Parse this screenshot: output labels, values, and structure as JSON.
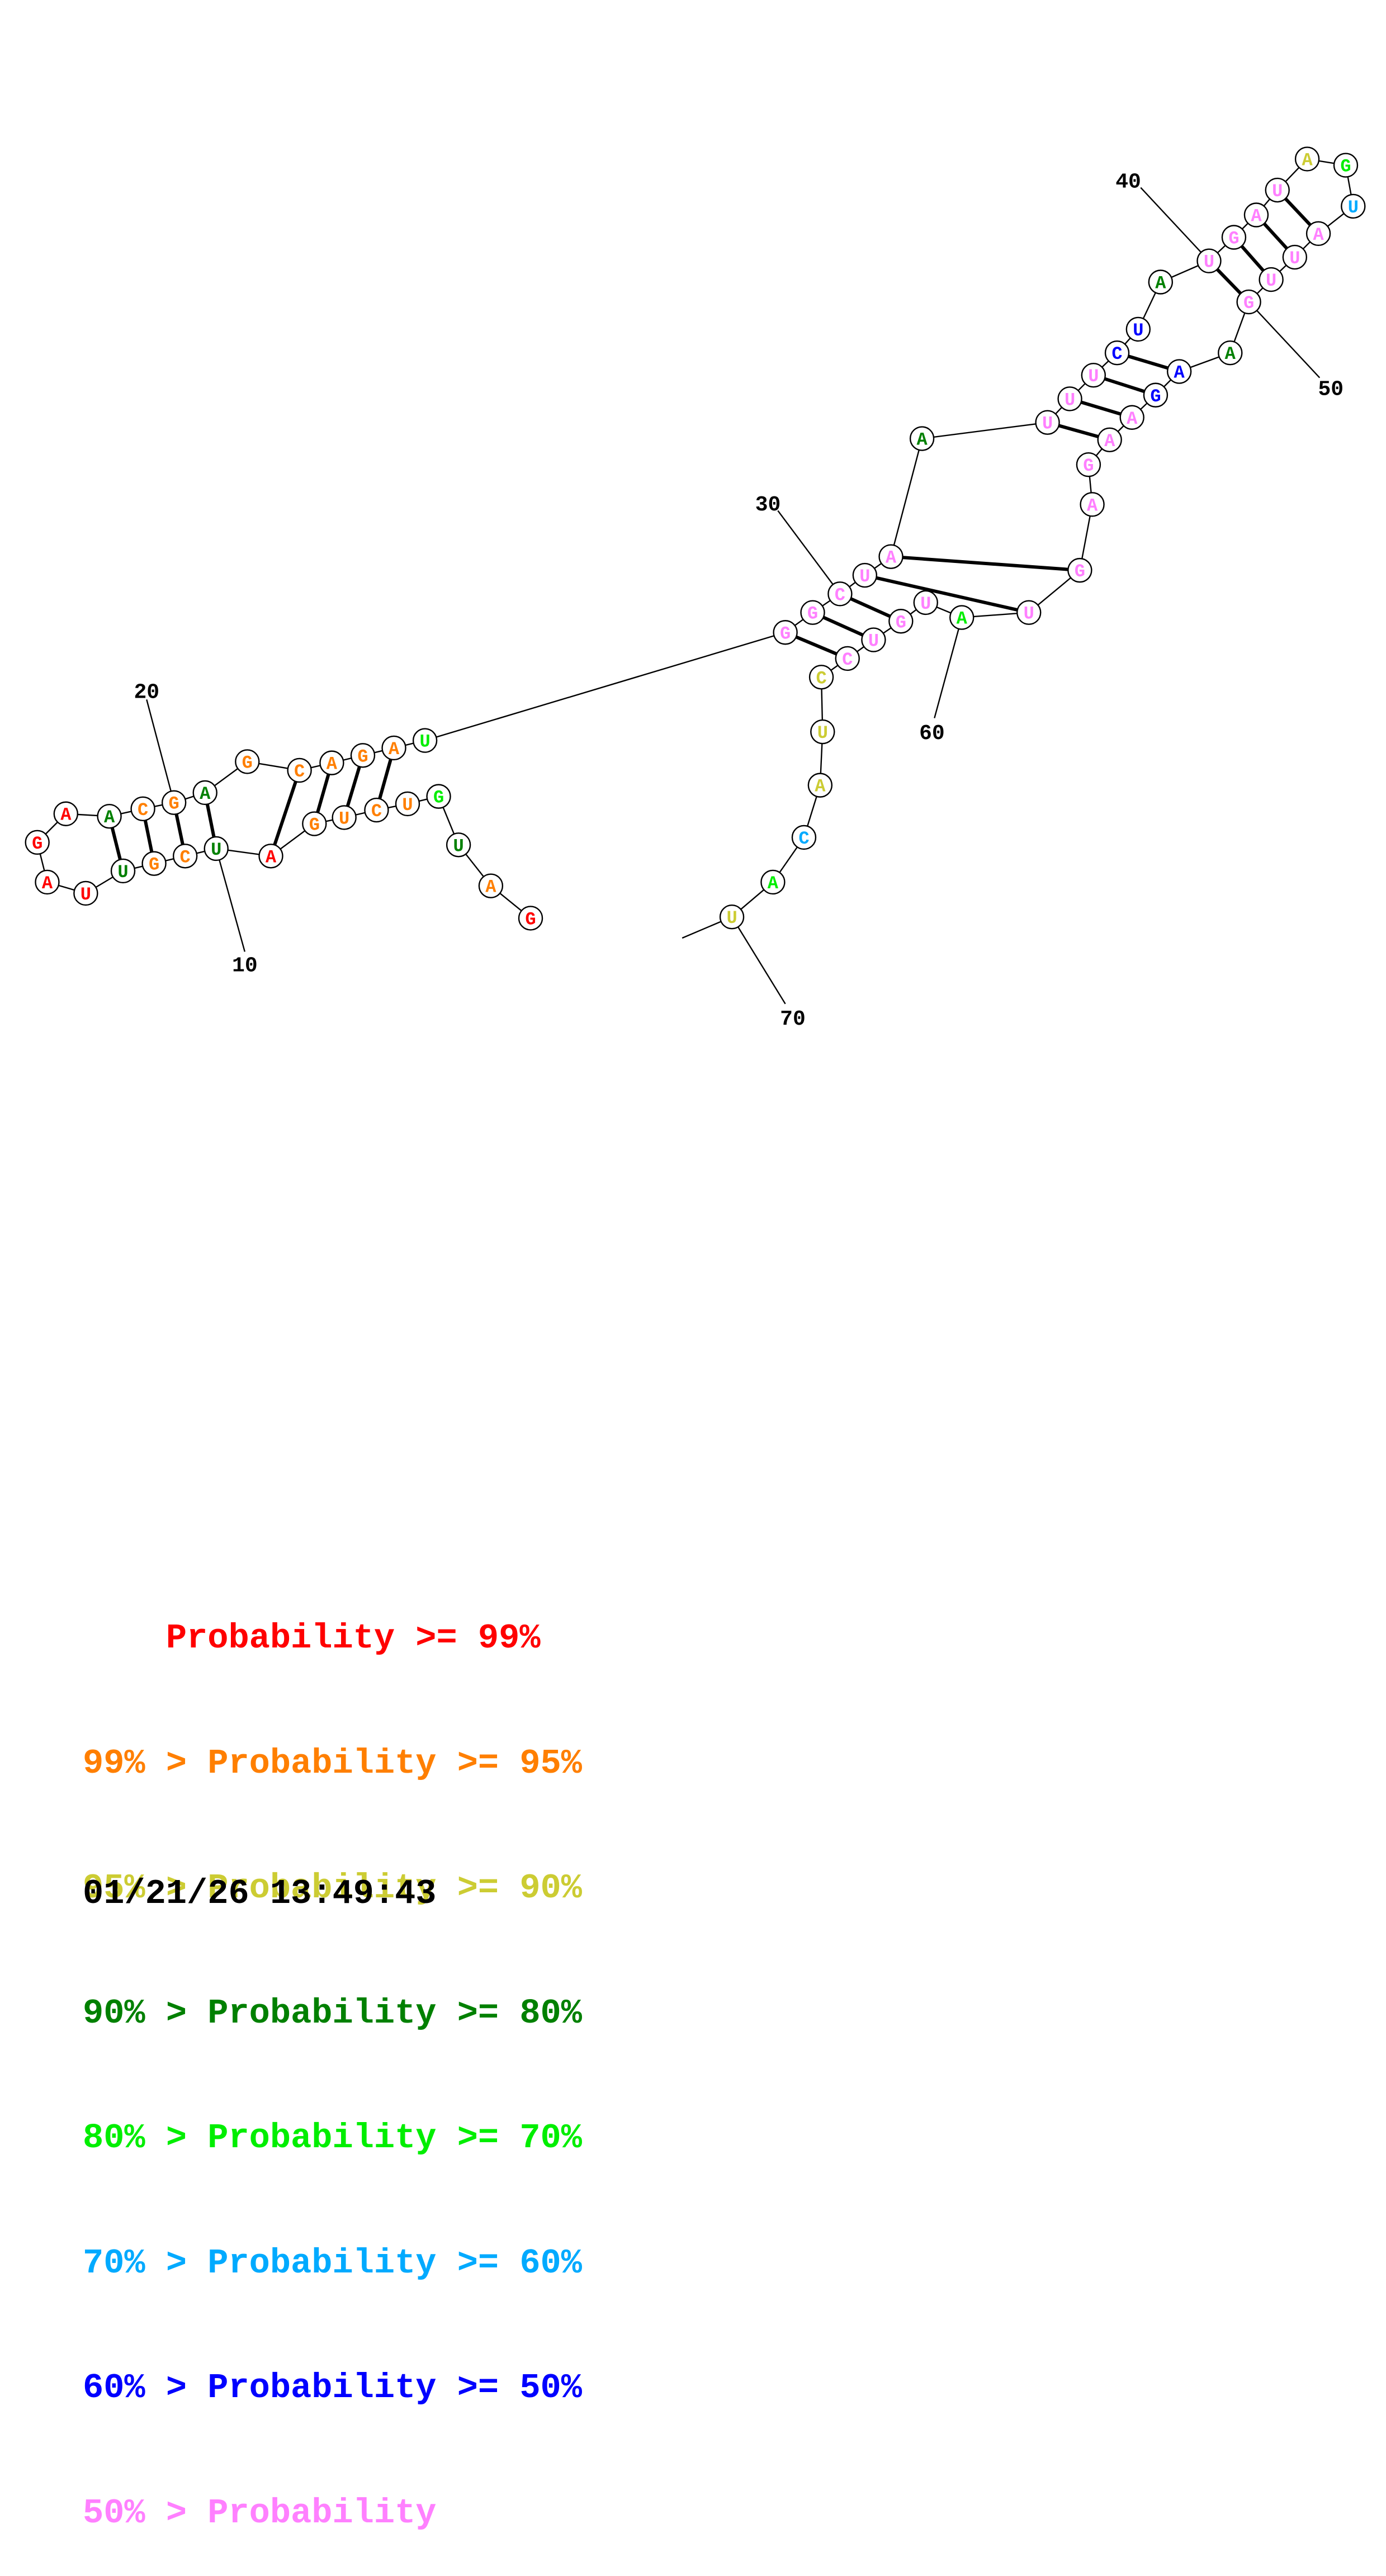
{
  "structure": {
    "nucleotides": [
      {
        "n": 1,
        "base": "G",
        "color": "#ff0000"
      },
      {
        "n": 2,
        "base": "A",
        "color": "#ff7f00"
      },
      {
        "n": 3,
        "base": "U",
        "color": "#008000"
      },
      {
        "n": 4,
        "base": "G",
        "color": "#00ee00"
      },
      {
        "n": 5,
        "base": "U",
        "color": "#ff7f00"
      },
      {
        "n": 6,
        "base": "C",
        "color": "#ff7f00"
      },
      {
        "n": 7,
        "base": "U",
        "color": "#ff7f00"
      },
      {
        "n": 8,
        "base": "G",
        "color": "#ff7f00"
      },
      {
        "n": 9,
        "base": "A",
        "color": "#ff0000"
      },
      {
        "n": 10,
        "base": "U",
        "color": "#008000"
      },
      {
        "n": 11,
        "base": "C",
        "color": "#ff7f00"
      },
      {
        "n": 12,
        "base": "G",
        "color": "#ff7f00"
      },
      {
        "n": 13,
        "base": "U",
        "color": "#008000"
      },
      {
        "n": 14,
        "base": "U",
        "color": "#ff0000"
      },
      {
        "n": 15,
        "base": "A",
        "color": "#ff0000"
      },
      {
        "n": 16,
        "base": "G",
        "color": "#ff0000"
      },
      {
        "n": 17,
        "base": "A",
        "color": "#ff0000"
      },
      {
        "n": 18,
        "base": "A",
        "color": "#008000"
      },
      {
        "n": 19,
        "base": "C",
        "color": "#ff7f00"
      },
      {
        "n": 20,
        "base": "G",
        "color": "#ff7f00"
      },
      {
        "n": 21,
        "base": "A",
        "color": "#008000"
      },
      {
        "n": 22,
        "base": "G",
        "color": "#ff7f00"
      },
      {
        "n": 23,
        "base": "C",
        "color": "#ff7f00"
      },
      {
        "n": 24,
        "base": "A",
        "color": "#ff7f00"
      },
      {
        "n": 25,
        "base": "G",
        "color": "#ff7f00"
      },
      {
        "n": 26,
        "base": "A",
        "color": "#ff7f00"
      },
      {
        "n": 27,
        "base": "U",
        "color": "#00ee00"
      },
      {
        "n": 28,
        "base": "G",
        "color": "#ff80ff"
      },
      {
        "n": 29,
        "base": "G",
        "color": "#ff80ff"
      },
      {
        "n": 30,
        "base": "C",
        "color": "#ff80ff"
      },
      {
        "n": 31,
        "base": "U",
        "color": "#ff80ff"
      },
      {
        "n": 32,
        "base": "A",
        "color": "#ff80ff"
      },
      {
        "n": 33,
        "base": "A",
        "color": "#008000"
      },
      {
        "n": 34,
        "base": "U",
        "color": "#ff80ff"
      },
      {
        "n": 35,
        "base": "U",
        "color": "#ff80ff"
      },
      {
        "n": 36,
        "base": "U",
        "color": "#ff80ff"
      },
      {
        "n": 37,
        "base": "C",
        "color": "#0000ff"
      },
      {
        "n": 38,
        "base": "U",
        "color": "#0000ff"
      },
      {
        "n": 39,
        "base": "A",
        "color": "#008000"
      },
      {
        "n": 40,
        "base": "U",
        "color": "#ff80ff"
      },
      {
        "n": 41,
        "base": "G",
        "color": "#ff80ff"
      },
      {
        "n": 42,
        "base": "A",
        "color": "#ff80ff"
      },
      {
        "n": 43,
        "base": "U",
        "color": "#ff80ff"
      },
      {
        "n": 44,
        "base": "A",
        "color": "#cccc33"
      },
      {
        "n": 45,
        "base": "G",
        "color": "#00ee00"
      },
      {
        "n": 46,
        "base": "U",
        "color": "#00aaff"
      },
      {
        "n": 47,
        "base": "A",
        "color": "#ff80ff"
      },
      {
        "n": 48,
        "base": "U",
        "color": "#ff80ff"
      },
      {
        "n": 49,
        "base": "U",
        "color": "#ff80ff"
      },
      {
        "n": 50,
        "base": "G",
        "color": "#ff80ff"
      },
      {
        "n": 51,
        "base": "A",
        "color": "#008000"
      },
      {
        "n": 52,
        "base": "A",
        "color": "#0000ff"
      },
      {
        "n": 53,
        "base": "G",
        "color": "#0000ff"
      },
      {
        "n": 54,
        "base": "A",
        "color": "#ff80ff"
      },
      {
        "n": 55,
        "base": "A",
        "color": "#ff80ff"
      },
      {
        "n": 56,
        "base": "G",
        "color": "#ff80ff"
      },
      {
        "n": 57,
        "base": "A",
        "color": "#ff80ff"
      },
      {
        "n": 58,
        "base": "G",
        "color": "#ff80ff"
      },
      {
        "n": 59,
        "base": "U",
        "color": "#ff80ff"
      },
      {
        "n": 60,
        "base": "A",
        "color": "#00ee00"
      },
      {
        "n": 61,
        "base": "U",
        "color": "#ff80ff"
      },
      {
        "n": 62,
        "base": "G",
        "color": "#ff80ff"
      },
      {
        "n": 63,
        "base": "U",
        "color": "#ff80ff"
      },
      {
        "n": 64,
        "base": "C",
        "color": "#ff80ff"
      },
      {
        "n": 65,
        "base": "C",
        "color": "#cccc33"
      },
      {
        "n": 66,
        "base": "U",
        "color": "#cccc33"
      },
      {
        "n": 67,
        "base": "A",
        "color": "#cccc33"
      },
      {
        "n": 68,
        "base": "C",
        "color": "#00aaff"
      },
      {
        "n": 69,
        "base": "A",
        "color": "#00ee00"
      },
      {
        "n": 70,
        "base": "U",
        "color": "#cccc33"
      }
    ],
    "pairs": [
      [
        6,
        26
      ],
      [
        7,
        25
      ],
      [
        8,
        24
      ],
      [
        9,
        23
      ],
      [
        10,
        21
      ],
      [
        11,
        20
      ],
      [
        12,
        19
      ],
      [
        13,
        18
      ],
      [
        28,
        64
      ],
      [
        29,
        63
      ],
      [
        30,
        62
      ],
      [
        31,
        59
      ],
      [
        32,
        58
      ],
      [
        34,
        55
      ],
      [
        35,
        54
      ],
      [
        36,
        53
      ],
      [
        37,
        52
      ],
      [
        40,
        50
      ],
      [
        41,
        49
      ],
      [
        42,
        48
      ],
      [
        43,
        47
      ]
    ],
    "position_labels": [
      "10",
      "20",
      "30",
      "40",
      "50",
      "60",
      "70"
    ]
  },
  "legend": {
    "rows": [
      {
        "text": "    Probability >= 99%",
        "color": "#ff0000"
      },
      {
        "text": "99% > Probability >= 95%",
        "color": "#ff7f00"
      },
      {
        "text": "95% > Probability >= 90%",
        "color": "#cccc33"
      },
      {
        "text": "90% > Probability >= 80%",
        "color": "#008000"
      },
      {
        "text": "80% > Probability >= 70%",
        "color": "#00ee00"
      },
      {
        "text": "70% > Probability >= 60%",
        "color": "#00aaff"
      },
      {
        "text": "60% > Probability >= 50%",
        "color": "#0000ff"
      },
      {
        "text": "50% > Probability",
        "color": "#ff80ff"
      }
    ]
  },
  "timestamp": "01/21/26 13:49:43"
}
